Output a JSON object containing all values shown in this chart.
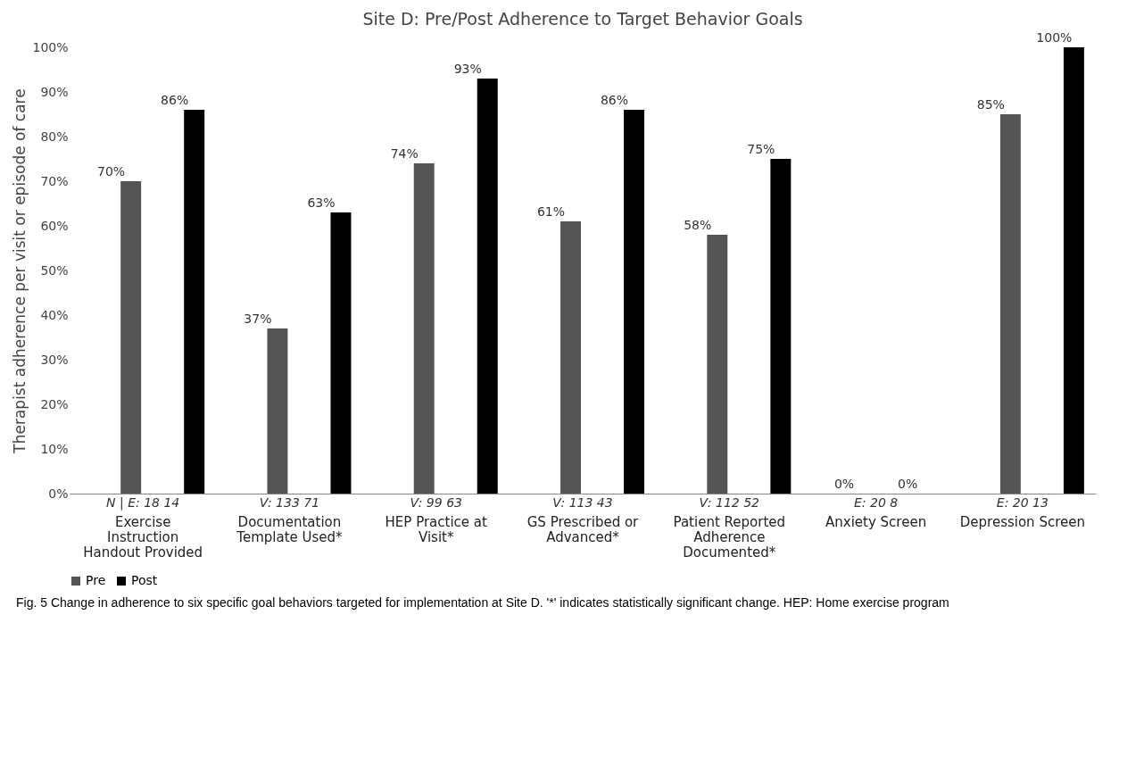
{
  "chart_data": {
    "type": "bar",
    "title": "Site D: Pre/Post Adherence to Target Behavior Goals",
    "ylabel": "Therapist adherence per visit or episode of care",
    "categories": [
      "Exercise Instruction Handout Provided",
      "Documentation Template Used*",
      "HEP Practice at Visit*",
      "GS Prescribed or Advanced*",
      "Patient Reported Adherence Documented*",
      "Anxiety Screen",
      "Depression Screen"
    ],
    "series": [
      {
        "name": "Pre",
        "color": "#555555",
        "values": [
          70,
          37,
          74,
          61,
          58,
          0,
          85
        ]
      },
      {
        "name": "Post",
        "color": "#000000",
        "values": [
          86,
          63,
          93,
          86,
          75,
          0,
          100
        ]
      }
    ],
    "ylim": [
      0,
      100
    ],
    "yticks": [
      {
        "value": 0,
        "label": "0%"
      },
      {
        "value": 10,
        "label": "10%"
      },
      {
        "value": 20,
        "label": "20%"
      },
      {
        "value": 30,
        "label": "30%"
      },
      {
        "value": 40,
        "label": "40%"
      },
      {
        "value": 50,
        "label": "50%"
      },
      {
        "value": 60,
        "label": "60%"
      },
      {
        "value": 70,
        "label": "70%"
      },
      {
        "value": 80,
        "label": "80%"
      },
      {
        "value": 90,
        "label": "90%"
      },
      {
        "value": 100,
        "label": "100%"
      }
    ],
    "value_labels": [
      [
        "70%",
        "37%",
        "74%",
        "61%",
        "58%",
        "0%",
        "85%"
      ],
      [
        "86%",
        "63%",
        "93%",
        "86%",
        "75%",
        "0%",
        "100%"
      ]
    ],
    "legend": "bottom",
    "grid": false,
    "annotations": [
      "N | E: 18  14",
      "V: 133  71",
      "V: 99  63",
      "V: 113  43",
      "V: 112  52",
      "E: 20  8",
      "E: 20  13",
      "Fig. 5 Change in adherence to six specific goal behaviors targeted for implementation at Site D. '*' indicates statistically significant change. HEP: Home exercise program"
    ]
  }
}
